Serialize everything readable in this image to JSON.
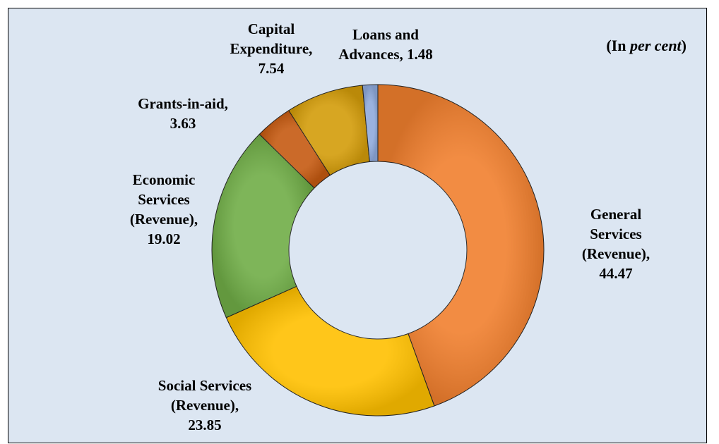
{
  "chart_data": {
    "type": "pie",
    "variant": "donut",
    "unit_note": {
      "prefix": "(In ",
      "italic": "per cent",
      "suffix": ")"
    },
    "slices": [
      {
        "name": "General Services (Revenue)",
        "value": 44.47,
        "color": "#f07f2e",
        "label_lines": [
          "General",
          "Services",
          "(Revenue),",
          "44.47"
        ]
      },
      {
        "name": "Social Services (Revenue)",
        "value": 23.85,
        "color": "#ffc000",
        "label_lines": [
          "Social Services",
          "(Revenue),",
          "23.85"
        ]
      },
      {
        "name": "Economic Services (Revenue)",
        "value": 19.02,
        "color": "#70ad47",
        "label_lines": [
          "Economic",
          "Services",
          "(Revenue),",
          "19.02"
        ]
      },
      {
        "name": "Grants-in-aid",
        "value": 3.63,
        "color": "#c55a11",
        "label_lines": [
          "Grants-in-aid,",
          "3.63"
        ]
      },
      {
        "name": "Capital Expenditure",
        "value": 7.54,
        "color": "#d39c0a",
        "label_lines": [
          "Capital",
          "Expenditure,",
          "7.54"
        ]
      },
      {
        "name": "Loans and Advances",
        "value": 1.48,
        "color": "#8faadc",
        "label_lines": [
          "Loans and",
          "Advances, 1.48"
        ]
      }
    ],
    "legend": "none",
    "background_color": "#dce6f2"
  }
}
